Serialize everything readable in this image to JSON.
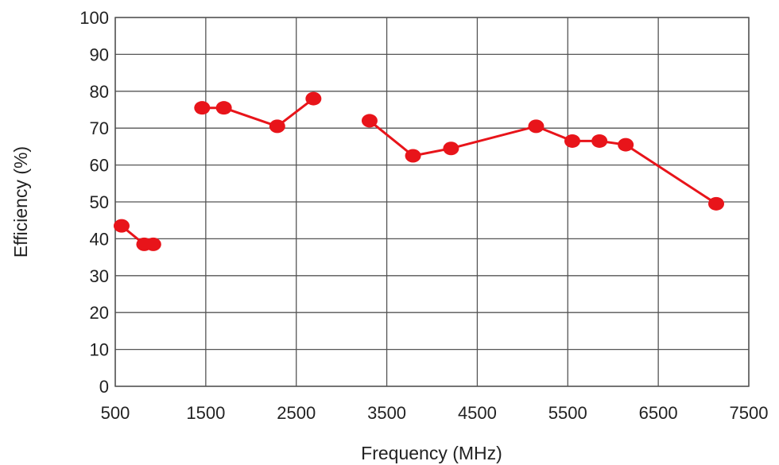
{
  "chart_data": {
    "type": "line",
    "title": "",
    "xlabel": "Frequency (MHz)",
    "ylabel": "Efficiency (%)",
    "xlim": [
      500,
      7500
    ],
    "ylim": [
      0,
      100
    ],
    "xticks": [
      500,
      1500,
      2500,
      3500,
      4500,
      5500,
      6500,
      7500
    ],
    "yticks": [
      0,
      10,
      20,
      30,
      40,
      50,
      60,
      70,
      80,
      90,
      100
    ],
    "grid": true,
    "line_color": "#e8141a",
    "segments": [
      [
        {
          "x": 570,
          "y": 43.5
        },
        {
          "x": 820,
          "y": 38.5
        },
        {
          "x": 920,
          "y": 38.5
        }
      ],
      [
        {
          "x": 1460,
          "y": 75.5
        },
        {
          "x": 1700,
          "y": 75.5
        },
        {
          "x": 2290,
          "y": 70.5
        },
        {
          "x": 2690,
          "y": 78
        }
      ],
      [
        {
          "x": 3310,
          "y": 72
        },
        {
          "x": 3790,
          "y": 62.5
        },
        {
          "x": 4210,
          "y": 64.5
        },
        {
          "x": 5150,
          "y": 70.5
        },
        {
          "x": 5550,
          "y": 66.5
        },
        {
          "x": 5850,
          "y": 66.5
        },
        {
          "x": 6140,
          "y": 65.5
        },
        {
          "x": 7140,
          "y": 49.5
        }
      ]
    ]
  }
}
